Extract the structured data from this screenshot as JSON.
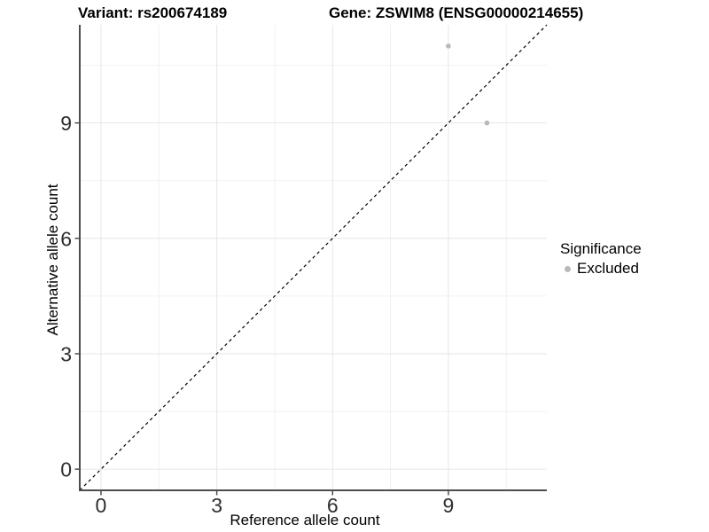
{
  "chart_data": {
    "type": "scatter",
    "title_left": "Variant: rs200674189",
    "title_right": "Gene: ZSWIM8 (ENSG00000214655)",
    "xlabel": "Reference allele count",
    "ylabel": "Alternative allele count",
    "xlim": [
      0,
      11
    ],
    "ylim": [
      0,
      11
    ],
    "expansion": 0.05,
    "x_ticks": [
      0,
      3,
      6,
      9
    ],
    "y_ticks": [
      0,
      3,
      6,
      9
    ],
    "x_minor_ticks": [
      1.5,
      4.5,
      7.5,
      10.5
    ],
    "y_minor_ticks": [
      1.5,
      4.5,
      7.5,
      10.5
    ],
    "grid": "on",
    "points": [
      {
        "x": 9,
        "y": 11,
        "significance": "Excluded"
      },
      {
        "x": 10,
        "y": 9,
        "significance": "Excluded"
      }
    ],
    "identity_line": {
      "style": "dashed",
      "slope": 1,
      "intercept": 0
    },
    "legend": {
      "title": "Significance",
      "position": "right",
      "items": [
        {
          "label": "Excluded",
          "color": "#b9b9b9"
        }
      ]
    },
    "colors": {
      "point": "#b9b9b9",
      "identity_line": "#000000",
      "axis_line": "#4d4d4d",
      "grid_major": "#e6e6e6",
      "grid_minor": "#f1f1f1",
      "tick_label": "#2e2e2e",
      "background": "#ffffff"
    }
  }
}
